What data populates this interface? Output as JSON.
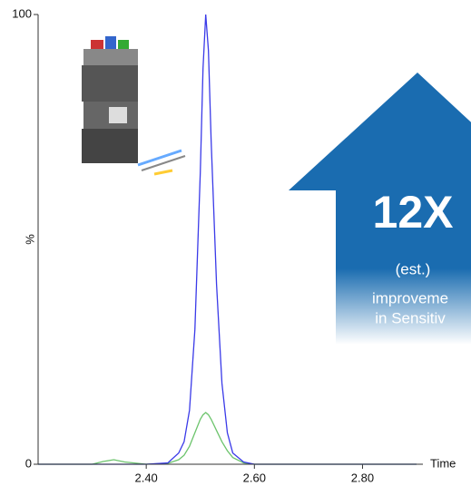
{
  "chart_data": {
    "type": "line",
    "x_label": "Time",
    "y_label": "%",
    "x": [
      2.2,
      2.3,
      2.32,
      2.34,
      2.36,
      2.4,
      2.44,
      2.46,
      2.47,
      2.48,
      2.49,
      2.5,
      2.505,
      2.51,
      2.515,
      2.52,
      2.53,
      2.54,
      2.55,
      2.56,
      2.58,
      2.6,
      2.7,
      2.9
    ],
    "series": [
      {
        "color": "#3a3ae8",
        "values": [
          0,
          0,
          0,
          0,
          0,
          0,
          0.3,
          2.5,
          5,
          12,
          30,
          65,
          88,
          100,
          92,
          72,
          40,
          18,
          7,
          2.5,
          0.5,
          0,
          0,
          0
        ]
      },
      {
        "color": "#6cc46c",
        "values": [
          0,
          0,
          0.6,
          1,
          0.5,
          0,
          0.2,
          1,
          2,
          4,
          7,
          10,
          11,
          11.5,
          11,
          10,
          7.5,
          5,
          3,
          1.5,
          0.3,
          0,
          0,
          0
        ]
      }
    ],
    "xlim": [
      2.2,
      2.91
    ],
    "ylim": [
      0,
      100
    ],
    "xticks": [
      {
        "value": 2.4,
        "label": "2.40"
      },
      {
        "value": 2.6,
        "label": "2.60"
      },
      {
        "value": 2.8,
        "label": "2.80"
      }
    ],
    "yticks": [
      0,
      100
    ],
    "annotation": {
      "headline": "12X",
      "lines": [
        "(est.)",
        "improveme",
        "in Sensitiv"
      ],
      "color": "#1a6cb0"
    }
  }
}
